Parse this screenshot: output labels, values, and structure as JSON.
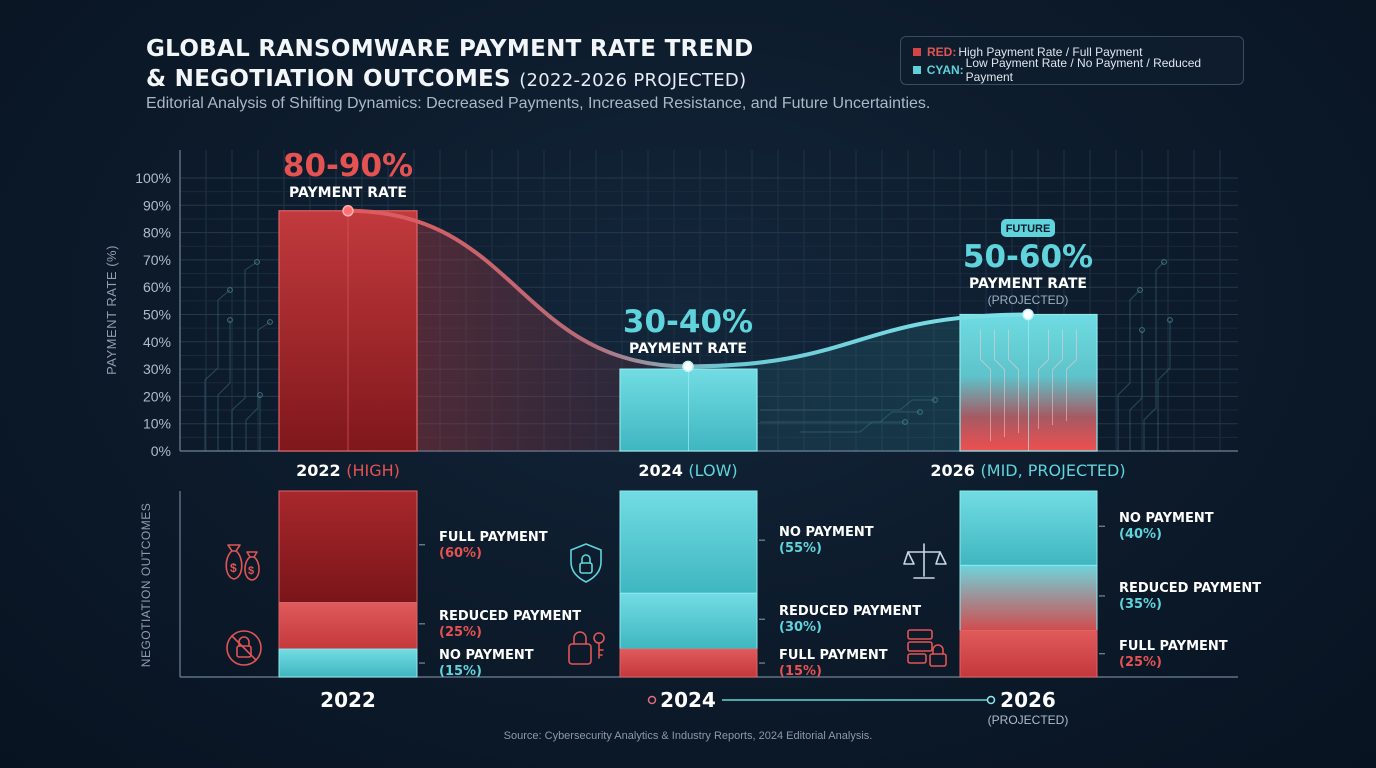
{
  "header": {
    "title_line1": "GLOBAL RANSOMWARE PAYMENT RATE TREND",
    "title_line2": "& NEGOTIATION OUTCOMES",
    "title_suffix": "(2022-2026 PROJECTED)",
    "subtitle": "Editorial Analysis of Shifting Dynamics: Decreased Payments, Increased Resistance, and Future Uncertainties."
  },
  "legend": {
    "red_key": "RED:",
    "red_text": "High Payment Rate / Full Payment",
    "cyan_key": "CYAN:",
    "cyan_text": "Low Payment Rate / No Payment / Reduced Payment"
  },
  "colors": {
    "red": "#d64545",
    "red_dark": "#8e1b1f",
    "cyan": "#5fd0d8",
    "cyan_light": "#7de3ea",
    "background": "#0c1a2a"
  },
  "icons": [
    "money-bags-icon",
    "no-lock-icon",
    "shield-lock-icon",
    "unlock-key-icon",
    "scales-icon",
    "server-lock-icon"
  ],
  "chart_data": [
    {
      "type": "bar",
      "ylabel": "PAYMENT RATE (%)",
      "ylim": [
        0,
        100
      ],
      "yticks": [
        "0%",
        "10%",
        "20%",
        "30%",
        "40%",
        "50%",
        "60%",
        "70%",
        "80%",
        "90%",
        "100%"
      ],
      "grid": true,
      "categories": [
        {
          "year": "2022",
          "tag": "(HIGH)",
          "value": 88,
          "point": 88,
          "value_label": "80-90%",
          "caption": "PAYMENT RATE",
          "note": "",
          "badge": "",
          "color": "red"
        },
        {
          "year": "2024",
          "tag": "(LOW)",
          "value": 30,
          "point": 31,
          "value_label": "30-40%",
          "caption": "PAYMENT RATE",
          "note": "",
          "badge": "",
          "color": "cyan"
        },
        {
          "year": "2026",
          "tag": "(MID, PROJECTED)",
          "value": 50,
          "point": 50,
          "value_label": "50-60%",
          "caption": "PAYMENT RATE",
          "note": "(PROJECTED)",
          "badge": "FUTURE",
          "color": "mixed"
        }
      ]
    },
    {
      "type": "bar",
      "stacked": true,
      "ylabel": "NEGOTIATION OUTCOMES",
      "categories": [
        {
          "year": "2022",
          "note": "",
          "segments": [
            {
              "name": "FULL PAYMENT",
              "value": 60,
              "label": "(60%)",
              "color": "red"
            },
            {
              "name": "REDUCED PAYMENT",
              "value": 25,
              "label": "(25%)",
              "color": "red"
            },
            {
              "name": "NO PAYMENT",
              "value": 15,
              "label": "(15%)",
              "color": "cyan"
            }
          ]
        },
        {
          "year": "2024",
          "note": "",
          "segments": [
            {
              "name": "NO PAYMENT",
              "value": 55,
              "label": "(55%)",
              "color": "cyan"
            },
            {
              "name": "REDUCED PAYMENT",
              "value": 30,
              "label": "(30%)",
              "color": "cyan"
            },
            {
              "name": "FULL PAYMENT",
              "value": 15,
              "label": "(15%)",
              "color": "red"
            }
          ]
        },
        {
          "year": "2026",
          "note": "(PROJECTED)",
          "segments": [
            {
              "name": "NO PAYMENT",
              "value": 40,
              "label": "(40%)",
              "color": "cyan"
            },
            {
              "name": "REDUCED PAYMENT",
              "value": 35,
              "label": "(35%)",
              "color": "mixed"
            },
            {
              "name": "FULL PAYMENT",
              "value": 25,
              "label": "(25%)",
              "color": "red"
            }
          ]
        }
      ]
    }
  ],
  "footer": {
    "source": "Source: Cybersecurity Analytics & Industry Reports, 2024 Editorial Analysis."
  }
}
